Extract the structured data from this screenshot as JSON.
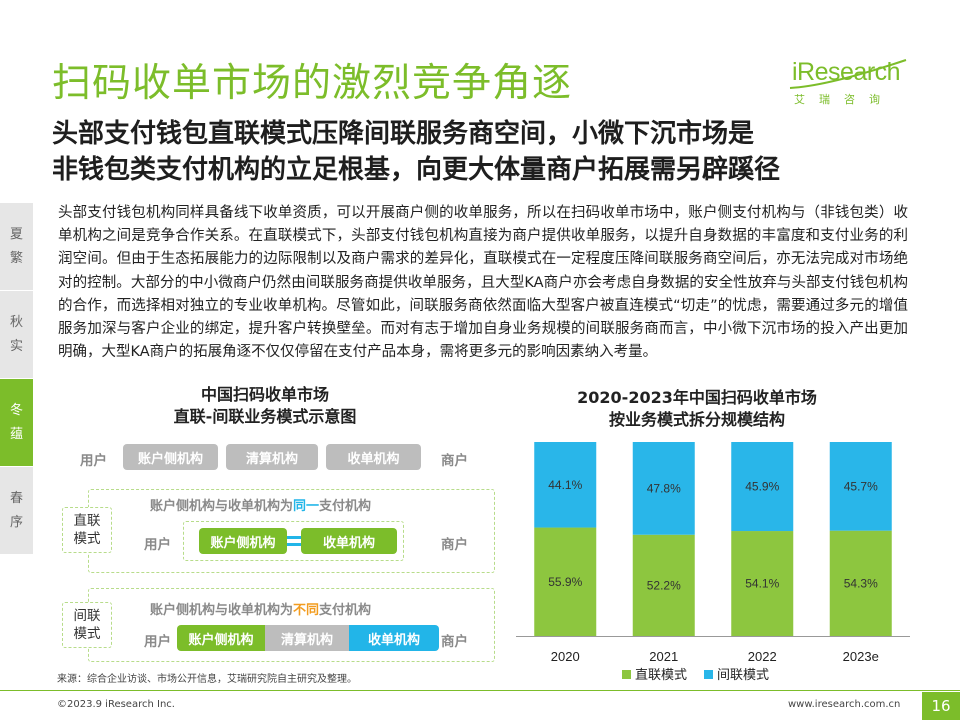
{
  "header": {
    "title": "扫码收单市场的激烈竞争角逐",
    "subtitle_line1": "头部支付钱包直联模式压降间联服务商空间，小微下沉市场是",
    "subtitle_line2": "非钱包类支付机构的立足根基，向更大体量商户拓展需另辟蹊径"
  },
  "logo": {
    "wordmark": "iResearch",
    "chinese": "艾瑞咨询",
    "brand_color": "#7cbd2a"
  },
  "sidebar": {
    "tabs": [
      {
        "char1": "夏",
        "char2": "繁",
        "active": false
      },
      {
        "char1": "秋",
        "char2": "实",
        "active": false
      },
      {
        "char1": "冬",
        "char2": "蕴",
        "active": true
      },
      {
        "char1": "春",
        "char2": "序",
        "active": false
      }
    ]
  },
  "body_text": "头部支付钱包机构同样具备线下收单资质，可以开展商户侧的收单服务，所以在扫码收单市场中，账户侧支付机构与（非钱包类）收单机构之间是竞争合作关系。在直联模式下，头部支付钱包机构直接为商户提供收单服务，以提升自身数据的丰富度和支付业务的利润空间。但由于生态拓展能力的边际限制以及商户需求的差异化，直联模式在一定程度压降间联服务商空间后，亦无法完成对市场绝对的控制。大部分的中小微商户仍然由间联服务商提供收单服务，且大型KA商户亦会考虑自身数据的安全性放弃与头部支付钱包机构的合作，而选择相对独立的专业收单机构。尽管如此，间联服务商依然面临大型客户被直连模式“切走”的忧虑，需要通过多元的增值服务加深与客户企业的绑定，提升客户转换壁垒。而对有志于增加自身业务规模的间联服务商而言，中小微下沉市场的投入产出更加明确，大型KA商户的拓展角逐不仅仅停留在支付产品本身，需将更多元的影响因素纳入考量。",
  "diagram": {
    "title_line1": "中国扫码收单市场",
    "title_line2": "直联-间联业务模式示意图",
    "top_row": {
      "user": "用户",
      "merchant": "商户",
      "boxes": [
        "账户侧机构",
        "清算机构",
        "收单机构"
      ]
    },
    "direct": {
      "mode_label_line1": "直联",
      "mode_label_line2": "模式",
      "heading_pre": "账户侧机构与收单机构为",
      "heading_hl": "同一",
      "heading_post": "支付机构",
      "user": "用户",
      "merchant": "商户",
      "boxes": [
        "账户侧机构",
        "收单机构"
      ]
    },
    "indirect": {
      "mode_label_line1": "间联",
      "mode_label_line2": "模式",
      "heading_pre": "账户侧机构与收单机构为",
      "heading_hl": "不同",
      "heading_post": "支付机构",
      "user": "用户",
      "merchant": "商户",
      "boxes": [
        "账户侧机构",
        "清算机构",
        "收单机构"
      ]
    }
  },
  "chart_title_line1": "2020-2023年中国扫码收单市场",
  "chart_title_line2": "按业务模式拆分规模结构",
  "chart_data": {
    "type": "bar",
    "stacked": true,
    "percent": true,
    "categories": [
      "2020",
      "2021",
      "2022",
      "2023e"
    ],
    "series": [
      {
        "name": "直联模式",
        "values": [
          55.9,
          52.2,
          54.1,
          54.3
        ],
        "color": "#8dc63f",
        "labels": [
          "55.9%",
          "52.2%",
          "54.1%",
          "54.3%"
        ]
      },
      {
        "name": "间联模式",
        "values": [
          44.1,
          47.8,
          45.9,
          45.7
        ],
        "color": "#29b6e9",
        "labels": [
          "44.1%",
          "47.8%",
          "45.9%",
          "45.7%"
        ]
      }
    ],
    "ylim": [
      0,
      100
    ],
    "legend": "bottom"
  },
  "footer": {
    "source": "来源：综合企业访谈、市场公开信息，艾瑞研究院自主研究及整理。",
    "copyright": "©2023.9 iResearch Inc.",
    "website": "www.iresearch.com.cn",
    "page_number": "16"
  }
}
